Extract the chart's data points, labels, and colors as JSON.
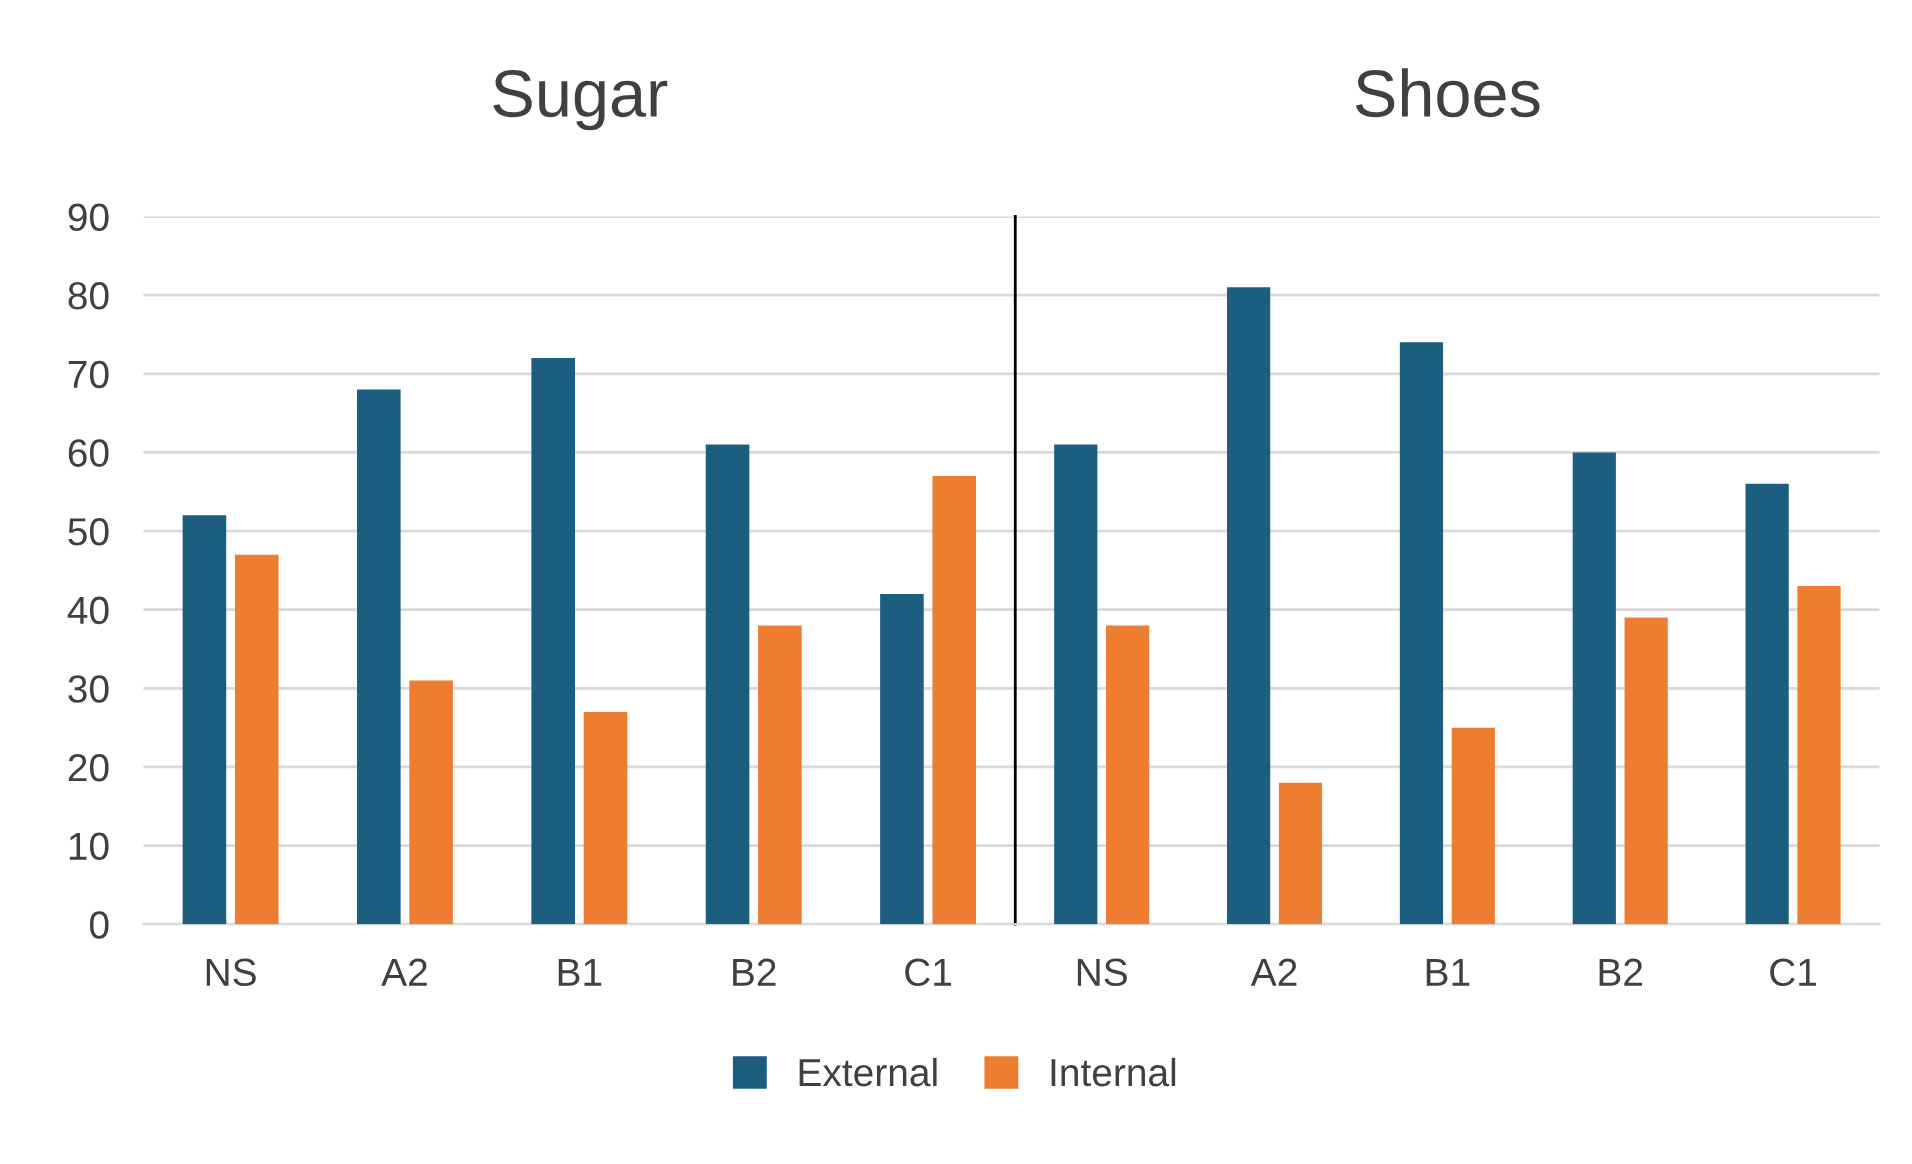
{
  "chart_data": [
    {
      "type": "bar",
      "title": "Sugar",
      "categories": [
        "NS",
        "A2",
        "B1",
        "B2",
        "C1"
      ],
      "series": [
        {
          "name": "External",
          "color": "#1b5e80",
          "values": [
            52,
            68,
            72,
            61,
            42
          ]
        },
        {
          "name": "Internal",
          "color": "#ed7d31",
          "values": [
            47,
            31,
            27,
            38,
            57
          ]
        }
      ],
      "ylim": [
        0,
        90
      ],
      "yticks": [
        0,
        10,
        20,
        30,
        40,
        50,
        60,
        70,
        80,
        90
      ],
      "grid": "y",
      "legend": "bottom"
    },
    {
      "type": "bar",
      "title": "Shoes",
      "categories": [
        "NS",
        "A2",
        "B1",
        "B2",
        "C1"
      ],
      "series": [
        {
          "name": "External",
          "color": "#1b5e80",
          "values": [
            61,
            81,
            74,
            60,
            56
          ]
        },
        {
          "name": "Internal",
          "color": "#ed7d31",
          "values": [
            38,
            18,
            25,
            39,
            43
          ]
        }
      ],
      "ylim": [
        0,
        90
      ],
      "yticks": [
        0,
        10,
        20,
        30,
        40,
        50,
        60,
        70,
        80,
        90
      ],
      "grid": "y",
      "legend": "bottom",
      "tick_labels": "x"
    }
  ]
}
